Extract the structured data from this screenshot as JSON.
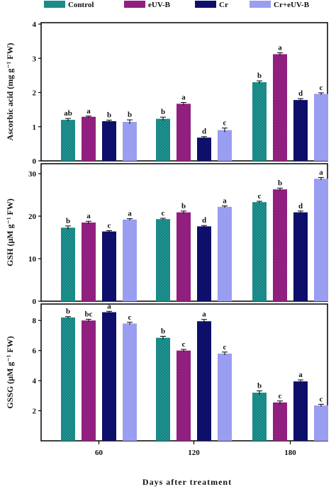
{
  "chart_data": [
    {
      "type": "bar",
      "categories": [
        "60",
        "120",
        "180"
      ],
      "ylabel": "Ascorbic acid (mg g⁻¹ FW)",
      "ylim": [
        0,
        4
      ],
      "yticks": [
        0,
        1,
        2,
        3,
        4
      ],
      "series": [
        {
          "name": "Control",
          "values": [
            1.2,
            1.23,
            2.3
          ],
          "errors": [
            0.04,
            0.05,
            0.04
          ],
          "letters": [
            "ab",
            "b",
            "b"
          ]
        },
        {
          "name": "eUV-B",
          "values": [
            1.29,
            1.67,
            3.12
          ],
          "errors": [
            0.02,
            0.04,
            0.04
          ],
          "letters": [
            "a",
            "a",
            "a"
          ]
        },
        {
          "name": "Cr",
          "values": [
            1.16,
            0.68,
            1.78
          ],
          "errors": [
            0.03,
            0.03,
            0.04
          ],
          "letters": [
            "b",
            "d",
            "d"
          ]
        },
        {
          "name": "Cr+eUV-B",
          "values": [
            1.14,
            0.9,
            1.96
          ],
          "errors": [
            0.06,
            0.06,
            0.03
          ],
          "letters": [
            "b",
            "c",
            "c"
          ]
        }
      ]
    },
    {
      "type": "bar",
      "categories": [
        "60",
        "120",
        "180"
      ],
      "ylabel": "GSH (μM g⁻¹ FW)",
      "ylim": [
        0,
        32
      ],
      "yticks": [
        0,
        10,
        20,
        30
      ],
      "series": [
        {
          "name": "Control",
          "values": [
            17.3,
            19.3,
            23.3
          ],
          "errors": [
            0.4,
            0.2,
            0.2
          ],
          "letters": [
            "b",
            "c",
            "c"
          ]
        },
        {
          "name": "eUV-B",
          "values": [
            18.5,
            20.9,
            26.3
          ],
          "errors": [
            0.3,
            0.3,
            0.3
          ],
          "letters": [
            "a",
            "b",
            "b"
          ]
        },
        {
          "name": "Cr",
          "values": [
            16.4,
            17.6,
            20.9
          ],
          "errors": [
            0.2,
            0.2,
            0.3
          ],
          "letters": [
            "c",
            "d",
            "d"
          ]
        },
        {
          "name": "Cr+eUV-B",
          "values": [
            19.2,
            22.2,
            28.8
          ],
          "errors": [
            0.2,
            0.2,
            0.3
          ],
          "letters": [
            "a",
            "a",
            "a"
          ]
        }
      ]
    },
    {
      "type": "bar",
      "categories": [
        "60",
        "120",
        "180"
      ],
      "ylabel": "GSSG (μM g⁻¹ FW)",
      "ylim": [
        0,
        9
      ],
      "yticks": [
        2,
        4,
        6,
        8
      ],
      "series": [
        {
          "name": "Control",
          "values": [
            8.2,
            6.85,
            3.2
          ],
          "errors": [
            0.06,
            0.1,
            0.12
          ],
          "letters": [
            "b",
            "b",
            "b"
          ]
        },
        {
          "name": "eUV-B",
          "values": [
            8.0,
            6.0,
            2.55
          ],
          "errors": [
            0.08,
            0.08,
            0.1
          ],
          "letters": [
            "bc",
            "c",
            "c"
          ]
        },
        {
          "name": "Cr",
          "values": [
            8.55,
            7.95,
            3.95
          ],
          "errors": [
            0.06,
            0.12,
            0.1
          ],
          "letters": [
            "a",
            "a",
            "a"
          ]
        },
        {
          "name": "Cr+eUV-B",
          "values": [
            7.8,
            5.8,
            2.35
          ],
          "errors": [
            0.08,
            0.1,
            0.08
          ],
          "letters": [
            "c",
            "c",
            "c"
          ]
        }
      ]
    }
  ],
  "legend": {
    "entries": [
      "Control",
      "eUV-B",
      "Cr",
      "Cr+eUV-B"
    ],
    "colors": [
      "#1f9c9a",
      "#a3238f",
      "#0d0f6b",
      "#9a9ef0"
    ]
  },
  "xlabel": "Days after treatment"
}
